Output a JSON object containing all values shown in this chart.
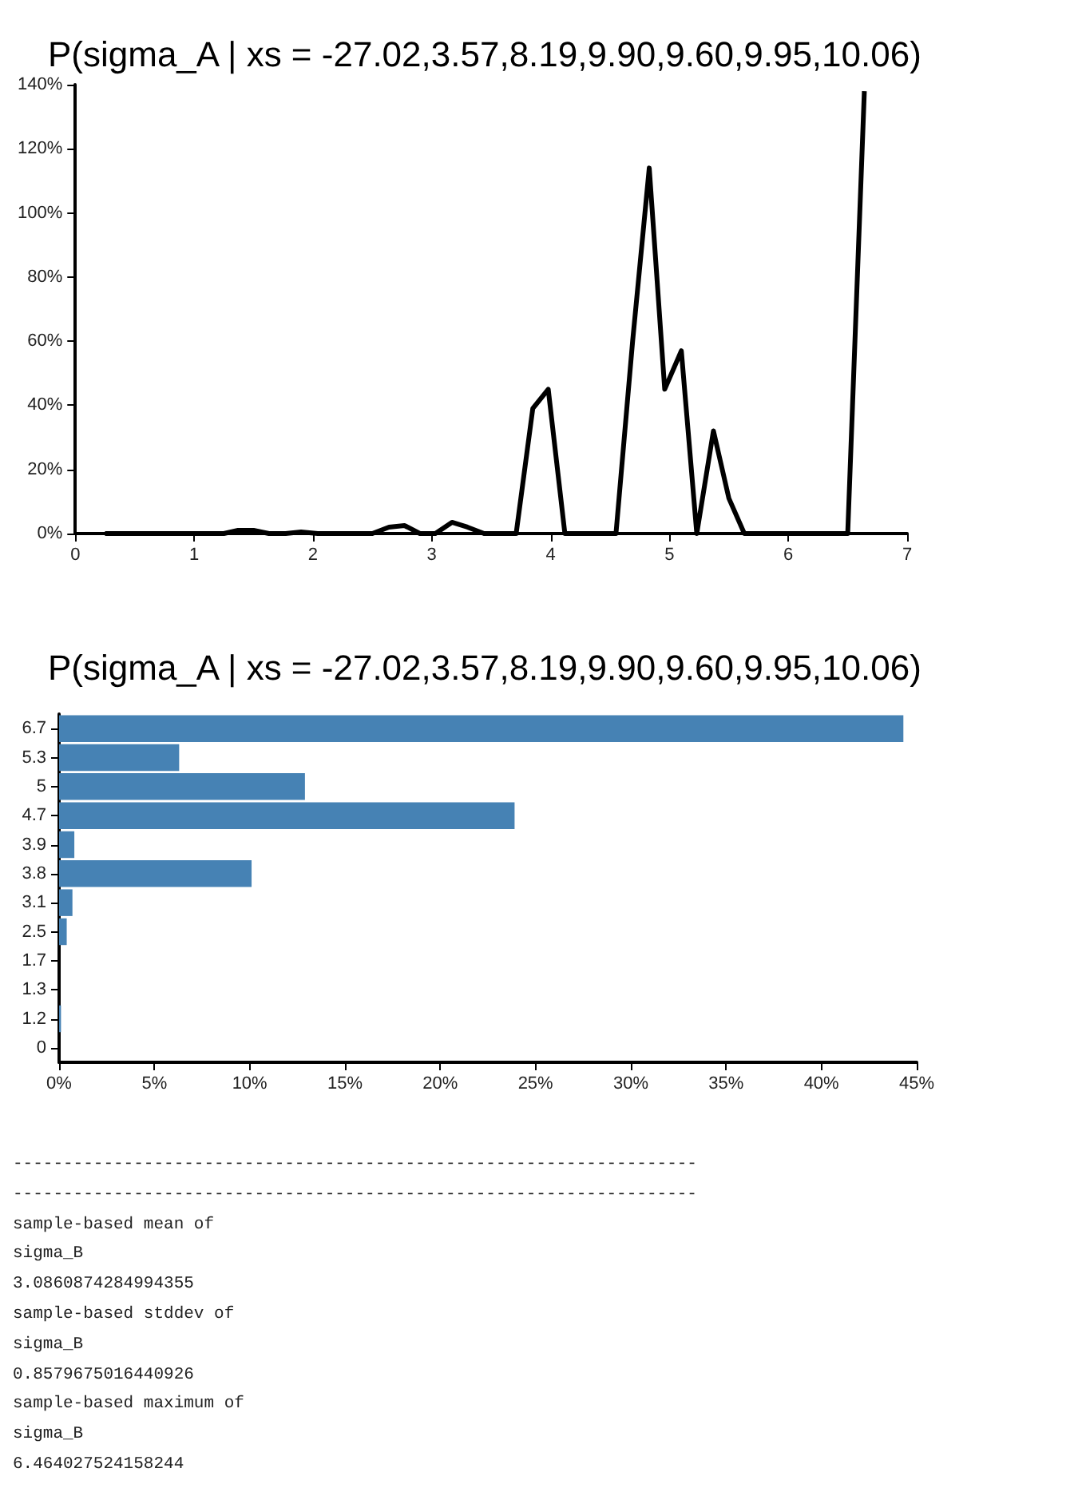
{
  "chart_data": [
    {
      "type": "line",
      "title": "P(sigma_A | xs = -27.02,3.57,8.19,9.90,9.60,9.95,10.06)",
      "x": [
        0.25,
        1.25,
        1.37,
        1.5,
        1.63,
        1.77,
        1.9,
        2.04,
        2.17,
        2.5,
        2.64,
        2.77,
        2.9,
        3.03,
        3.17,
        3.3,
        3.44,
        3.71,
        3.85,
        3.98,
        4.12,
        4.55,
        4.69,
        4.83,
        4.96,
        5.1,
        5.23,
        5.37,
        5.5,
        5.63,
        6.5,
        6.64
      ],
      "series": [
        {
          "color": "#000000",
          "values": [
            0,
            0,
            1,
            1,
            0,
            0,
            0.5,
            0,
            0,
            0,
            2,
            2.5,
            0,
            0,
            3.5,
            2,
            0,
            0,
            39,
            45,
            0,
            0,
            60,
            114,
            45,
            57,
            0,
            32,
            11,
            0,
            0,
            138
          ]
        }
      ],
      "xlim": [
        0,
        7
      ],
      "xticks": [
        0,
        1,
        2,
        3,
        4,
        5,
        6,
        7
      ],
      "ylim": [
        0,
        140
      ],
      "yticks": [
        {
          "value": 0,
          "label": "0%"
        },
        {
          "value": 20,
          "label": "20%"
        },
        {
          "value": 40,
          "label": "40%"
        },
        {
          "value": 60,
          "label": "60%"
        },
        {
          "value": 80,
          "label": "80%"
        },
        {
          "value": 100,
          "label": "100%"
        },
        {
          "value": 120,
          "label": "120%"
        },
        {
          "value": 140,
          "label": "140%"
        }
      ],
      "marker": "none",
      "line_style": "solid"
    },
    {
      "type": "bar",
      "orientation": "horizontal",
      "title": "P(sigma_A | xs = -27.02,3.57,8.19,9.90,9.60,9.95,10.06)",
      "categories": [
        "6.7",
        "5.3",
        "5",
        "4.7",
        "3.9",
        "3.8",
        "3.1",
        "2.5",
        "1.7",
        "1.3",
        "1.2",
        "0"
      ],
      "series": [
        {
          "color": "#4682b4",
          "values": [
            44.3,
            6.3,
            12.9,
            23.9,
            0.8,
            10.1,
            0.7,
            0.4,
            0,
            0,
            0.1,
            0
          ]
        }
      ],
      "xlim": [
        0,
        45
      ],
      "xticks": [
        {
          "value": 0,
          "label": "0%"
        },
        {
          "value": 5,
          "label": "5%"
        },
        {
          "value": 10,
          "label": "10%"
        },
        {
          "value": 15,
          "label": "15%"
        },
        {
          "value": 20,
          "label": "20%"
        },
        {
          "value": 25,
          "label": "25%"
        },
        {
          "value": 30,
          "label": "30%"
        },
        {
          "value": 35,
          "label": "35%"
        },
        {
          "value": 40,
          "label": "40%"
        },
        {
          "value": 45,
          "label": "45%"
        }
      ]
    },
    {
      "type": "other",
      "annotations": [
        "--------------------------------------------------------------------",
        "--------------------------------------------------------------------",
        "sample-based mean of",
        "sigma_B",
        "3.0860874284994355",
        "sample-based stddev of",
        "sigma_B",
        "0.8579675016440926",
        "sample-based maximum of",
        "sigma_B",
        "6.464027524158244"
      ]
    }
  ]
}
